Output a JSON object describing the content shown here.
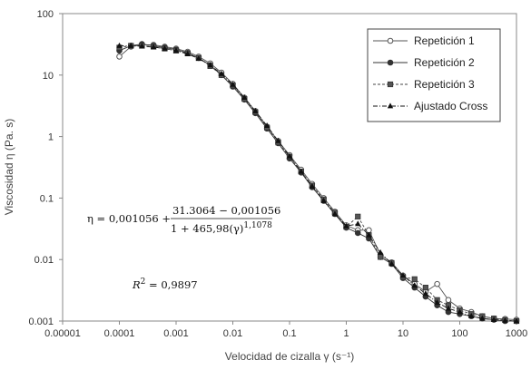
{
  "chart_data": {
    "type": "scatter",
    "xscale": "log",
    "yscale": "log",
    "xlim": [
      1e-05,
      1000
    ],
    "ylim": [
      0.001,
      100
    ],
    "xlabel": "Velocidad de cizalla γ (s⁻¹)",
    "ylabel": "Viscosidad η (Pa. s)",
    "x_ticks": [
      "0.00001",
      "0.0001",
      "0.001",
      "0.01",
      "0.1",
      "1",
      "10",
      "100",
      "1000"
    ],
    "y_ticks": [
      "0.001",
      "0.01",
      "0.1",
      "1",
      "10",
      "100"
    ],
    "legend_position": "top-right",
    "series": [
      {
        "name": "Repetición 1",
        "marker": "circle-open",
        "color": "#555555",
        "x": [
          0.0001,
          0.00016,
          0.00025,
          0.0004,
          0.00063,
          0.001,
          0.0016,
          0.0025,
          0.004,
          0.0063,
          0.01,
          0.016,
          0.025,
          0.04,
          0.063,
          0.1,
          0.16,
          0.25,
          0.4,
          0.63,
          1,
          1.6,
          2.5,
          4,
          6.3,
          10,
          16,
          25,
          40,
          63,
          100,
          160,
          250,
          400,
          630,
          1000
        ],
        "y": [
          20,
          29,
          31,
          31,
          29,
          27,
          24,
          20,
          15.5,
          11,
          7.2,
          4.3,
          2.6,
          1.45,
          0.85,
          0.5,
          0.29,
          0.17,
          0.1,
          0.06,
          0.036,
          0.03,
          0.03,
          0.012,
          0.009,
          0.0055,
          0.004,
          0.003,
          0.004,
          0.0022,
          0.0016,
          0.0014,
          0.0012,
          0.0011,
          0.00108,
          0.00105
        ]
      },
      {
        "name": "Repetición 2",
        "marker": "circle-filled",
        "color": "#333333",
        "x": [
          0.0001,
          0.00016,
          0.00025,
          0.0004,
          0.00063,
          0.001,
          0.0016,
          0.0025,
          0.004,
          0.0063,
          0.01,
          0.016,
          0.025,
          0.04,
          0.063,
          0.1,
          0.16,
          0.25,
          0.4,
          0.63,
          1,
          1.6,
          2.5,
          4,
          6.3,
          10,
          16,
          25,
          40,
          63,
          100,
          160,
          250,
          400,
          630,
          1000
        ],
        "y": [
          25,
          30,
          32,
          30,
          28,
          26,
          23,
          19,
          14.5,
          10,
          6.5,
          4,
          2.4,
          1.35,
          0.78,
          0.44,
          0.26,
          0.15,
          0.09,
          0.055,
          0.033,
          0.027,
          0.022,
          0.011,
          0.0085,
          0.005,
          0.0035,
          0.0025,
          0.0018,
          0.0014,
          0.0013,
          0.0012,
          0.0011,
          0.00105,
          0.001,
          0.001
        ]
      },
      {
        "name": "Repetición 3",
        "marker": "square",
        "color": "#444444",
        "x": [
          0.0001,
          0.00016,
          0.00025,
          0.0004,
          0.00063,
          0.001,
          0.0016,
          0.0025,
          0.004,
          0.0063,
          0.01,
          0.016,
          0.025,
          0.04,
          0.063,
          0.1,
          0.16,
          0.25,
          0.4,
          0.63,
          1,
          1.6,
          2.5,
          4,
          6.3,
          10,
          16,
          25,
          40,
          63,
          100,
          160,
          250,
          400,
          630,
          1000
        ],
        "y": [
          28,
          30,
          30,
          29,
          27,
          25,
          22.5,
          19,
          14,
          10,
          6.8,
          4.1,
          2.5,
          1.4,
          0.8,
          0.47,
          0.27,
          0.16,
          0.095,
          0.058,
          0.034,
          0.05,
          0.025,
          0.011,
          0.0088,
          0.0052,
          0.0048,
          0.0035,
          0.0022,
          0.0018,
          0.0015,
          0.0013,
          0.0012,
          0.0011,
          0.00104,
          0.001
        ]
      },
      {
        "name": "Ajustado Cross",
        "marker": "triangle",
        "color": "#111111",
        "x": [
          0.0001,
          0.00016,
          0.00025,
          0.0004,
          0.00063,
          0.001,
          0.0016,
          0.0025,
          0.004,
          0.0063,
          0.01,
          0.016,
          0.025,
          0.04,
          0.063,
          0.1,
          0.16,
          0.25,
          0.4,
          0.63,
          1,
          1.6,
          2.5,
          4,
          6.3,
          10,
          16,
          25,
          40,
          63,
          100,
          160,
          250,
          400,
          630,
          1000
        ],
        "y": [
          30,
          30,
          29.5,
          28.5,
          27,
          25,
          22,
          18.5,
          14.5,
          10.5,
          7,
          4.3,
          2.6,
          1.5,
          0.85,
          0.48,
          0.27,
          0.155,
          0.09,
          0.055,
          0.035,
          0.038,
          0.025,
          0.013,
          0.0085,
          0.0055,
          0.0038,
          0.0028,
          0.002,
          0.0016,
          0.0014,
          0.0012,
          0.0011,
          0.00105,
          0.00102,
          0.001
        ]
      }
    ],
    "annotations": {
      "eq_prefix": "η = 0,001056 +",
      "eq_numerator": "31.3064 − 0,001056",
      "eq_denominator": "1 + 465,98(γ)",
      "eq_exponent": "1,1078",
      "r2_label": "R",
      "r2_sup": "2",
      "r2_value": " = 0,9897"
    }
  }
}
